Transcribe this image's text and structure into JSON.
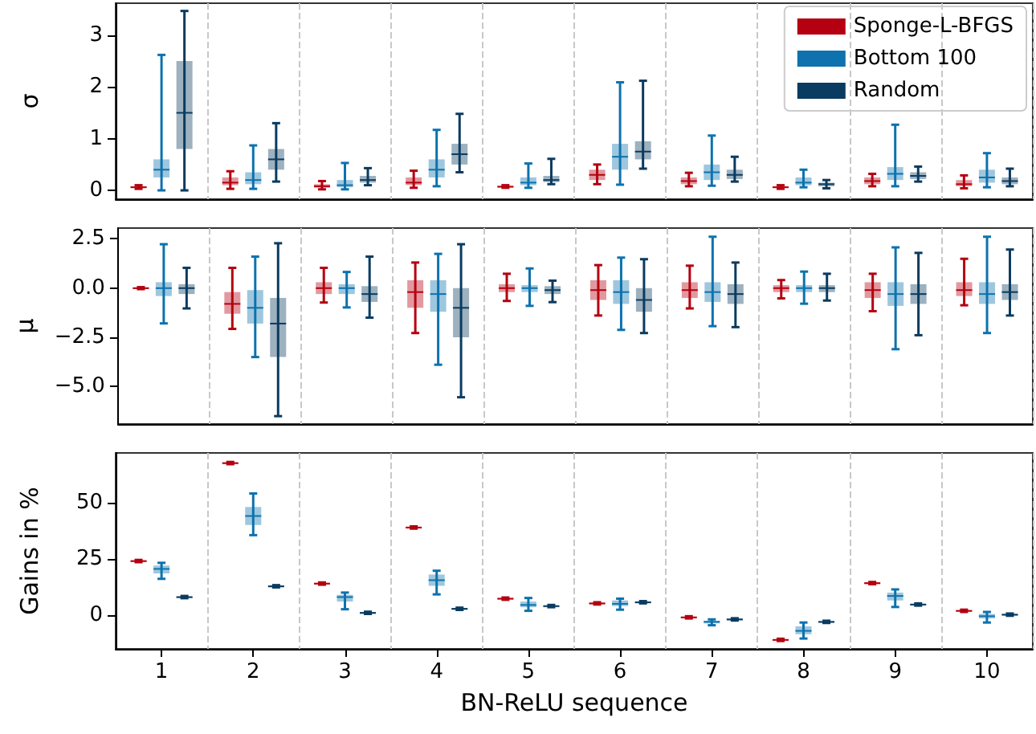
{
  "chart_data": [
    {
      "type": "box",
      "ylabel": "σ",
      "categories": [
        "1",
        "2",
        "3",
        "4",
        "5",
        "6",
        "7",
        "8",
        "9",
        "10"
      ],
      "ylim": [
        -0.17,
        3.62
      ],
      "yticks": [
        0,
        1,
        2,
        3
      ],
      "grid": "x",
      "legend": "top right",
      "tick_labels": "y",
      "series": [
        {
          "name": "Sponge-L-BFGS",
          "color": "#b40010",
          "boxes": [
            {
              "low": 0.03,
              "q1": 0.05,
              "median": 0.06,
              "q3": 0.08,
              "high": 0.1
            },
            {
              "low": 0.03,
              "q1": 0.1,
              "median": 0.15,
              "q3": 0.25,
              "high": 0.37
            },
            {
              "low": 0.02,
              "q1": 0.05,
              "median": 0.08,
              "q3": 0.12,
              "high": 0.18
            },
            {
              "low": 0.05,
              "q1": 0.1,
              "median": 0.15,
              "q3": 0.25,
              "high": 0.38
            },
            {
              "low": 0.05,
              "q1": 0.06,
              "median": 0.07,
              "q3": 0.09,
              "high": 0.1
            },
            {
              "low": 0.12,
              "q1": 0.2,
              "median": 0.3,
              "q3": 0.4,
              "high": 0.5
            },
            {
              "low": 0.08,
              "q1": 0.12,
              "median": 0.18,
              "q3": 0.25,
              "high": 0.34
            },
            {
              "low": 0.03,
              "q1": 0.05,
              "median": 0.06,
              "q3": 0.08,
              "high": 0.1
            },
            {
              "low": 0.08,
              "q1": 0.12,
              "median": 0.18,
              "q3": 0.25,
              "high": 0.32
            },
            {
              "low": 0.04,
              "q1": 0.08,
              "median": 0.12,
              "q3": 0.2,
              "high": 0.29
            }
          ]
        },
        {
          "name": "Bottom 100",
          "color": "#0d72ad",
          "boxes": [
            {
              "low": 0,
              "q1": 0.25,
              "median": 0.4,
              "q3": 0.6,
              "high": 2.62
            },
            {
              "low": 0.03,
              "q1": 0.12,
              "median": 0.2,
              "q3": 0.35,
              "high": 0.87
            },
            {
              "low": 0.02,
              "q1": 0.06,
              "median": 0.1,
              "q3": 0.2,
              "high": 0.53
            },
            {
              "low": 0.08,
              "q1": 0.25,
              "median": 0.4,
              "q3": 0.6,
              "high": 1.17
            },
            {
              "low": 0.05,
              "q1": 0.1,
              "median": 0.15,
              "q3": 0.25,
              "high": 0.52
            },
            {
              "low": 0.11,
              "q1": 0.4,
              "median": 0.65,
              "q3": 0.9,
              "high": 2.09
            },
            {
              "low": 0.09,
              "q1": 0.2,
              "median": 0.35,
              "q3": 0.5,
              "high": 1.06
            },
            {
              "low": 0.06,
              "q1": 0.1,
              "median": 0.15,
              "q3": 0.25,
              "high": 0.4
            },
            {
              "low": 0.08,
              "q1": 0.2,
              "median": 0.32,
              "q3": 0.45,
              "high": 1.27
            },
            {
              "low": 0.06,
              "q1": 0.15,
              "median": 0.25,
              "q3": 0.4,
              "high": 0.72
            }
          ]
        },
        {
          "name": "Random",
          "color": "#0a3b60",
          "boxes": [
            {
              "low": 0,
              "q1": 0.8,
              "median": 1.5,
              "q3": 2.5,
              "high": 3.47
            },
            {
              "low": 0.17,
              "q1": 0.4,
              "median": 0.6,
              "q3": 0.8,
              "high": 1.3
            },
            {
              "low": 0.1,
              "q1": 0.15,
              "median": 0.2,
              "q3": 0.28,
              "high": 0.43
            },
            {
              "low": 0.35,
              "q1": 0.5,
              "median": 0.7,
              "q3": 0.9,
              "high": 1.48
            },
            {
              "low": 0.12,
              "q1": 0.16,
              "median": 0.2,
              "q3": 0.28,
              "high": 0.61
            },
            {
              "low": 0.42,
              "q1": 0.6,
              "median": 0.75,
              "q3": 0.95,
              "high": 2.12
            },
            {
              "low": 0.17,
              "q1": 0.22,
              "median": 0.3,
              "q3": 0.4,
              "high": 0.65
            },
            {
              "low": 0.04,
              "q1": 0.08,
              "median": 0.12,
              "q3": 0.15,
              "high": 0.2
            },
            {
              "low": 0.17,
              "q1": 0.22,
              "median": 0.28,
              "q3": 0.35,
              "high": 0.46
            },
            {
              "low": 0.08,
              "q1": 0.12,
              "median": 0.18,
              "q3": 0.25,
              "high": 0.42
            }
          ]
        }
      ]
    },
    {
      "type": "box",
      "ylabel": "μ",
      "categories": [
        "1",
        "2",
        "3",
        "4",
        "5",
        "6",
        "7",
        "8",
        "9",
        "10"
      ],
      "ylim": [
        -6.9,
        3.05
      ],
      "yticks": [
        {
          "value": 2.5,
          "label": "2.5"
        },
        {
          "value": 0,
          "label": "0.0"
        },
        {
          "value": -2.5,
          "label": "−2.5"
        },
        {
          "value": -5,
          "label": "−5.0"
        }
      ],
      "grid": "x",
      "tick_labels": "y",
      "series": [
        {
          "color": "#b40010",
          "boxes": [
            {
              "low": -0.05,
              "q1": -0.03,
              "median": 0,
              "q3": 0.03,
              "high": 0.05
            },
            {
              "low": -2.07,
              "q1": -1.3,
              "median": -0.8,
              "q3": -0.2,
              "high": 1.03
            },
            {
              "low": -0.73,
              "q1": -0.3,
              "median": 0,
              "q3": 0.3,
              "high": 1.03
            },
            {
              "low": -2.28,
              "q1": -1,
              "median": -0.2,
              "q3": 0.4,
              "high": 1.3
            },
            {
              "low": -0.65,
              "q1": -0.2,
              "median": 0,
              "q3": 0.2,
              "high": 0.73
            },
            {
              "low": -1.39,
              "q1": -0.6,
              "median": -0.1,
              "q3": 0.4,
              "high": 1.17
            },
            {
              "low": -1.03,
              "q1": -0.5,
              "median": -0.1,
              "q3": 0.3,
              "high": 1.14
            },
            {
              "low": -0.52,
              "q1": -0.2,
              "median": 0,
              "q3": 0.15,
              "high": 0.41
            },
            {
              "low": -1.17,
              "q1": -0.5,
              "median": -0.1,
              "q3": 0.3,
              "high": 0.73
            },
            {
              "low": -0.87,
              "q1": -0.4,
              "median": -0.1,
              "q3": 0.3,
              "high": 1.49
            }
          ]
        },
        {
          "color": "#0d72ad",
          "boxes": [
            {
              "low": -1.79,
              "q1": -0.4,
              "median": 0,
              "q3": 0.3,
              "high": 2.23
            },
            {
              "low": -3.5,
              "q1": -1.8,
              "median": -1,
              "q3": -0.1,
              "high": 1.6
            },
            {
              "low": -0.98,
              "q1": -0.3,
              "median": 0,
              "q3": 0.2,
              "high": 0.82
            },
            {
              "low": -3.89,
              "q1": -1.2,
              "median": -0.3,
              "q3": 0.4,
              "high": 1.74
            },
            {
              "low": -0.9,
              "q1": -0.2,
              "median": 0,
              "q3": 0.15,
              "high": 1
            },
            {
              "low": -2.12,
              "q1": -0.8,
              "median": -0.2,
              "q3": 0.4,
              "high": 1.55
            },
            {
              "low": -1.93,
              "q1": -0.7,
              "median": -0.2,
              "q3": 0.3,
              "high": 2.61
            },
            {
              "low": -0.79,
              "q1": -0.2,
              "median": 0,
              "q3": 0.15,
              "high": 0.84
            },
            {
              "low": -3.1,
              "q1": -0.9,
              "median": -0.3,
              "q3": 0.3,
              "high": 2.07
            },
            {
              "low": -2.28,
              "q1": -0.8,
              "median": -0.3,
              "q3": 0.3,
              "high": 2.61
            }
          ]
        },
        {
          "color": "#0a3b60",
          "boxes": [
            {
              "low": -1.03,
              "q1": -0.3,
              "median": 0,
              "q3": 0.2,
              "high": 1.03
            },
            {
              "low": -6.5,
              "q1": -3.5,
              "median": -1.8,
              "q3": -0.5,
              "high": 2.28
            },
            {
              "low": -1.5,
              "q1": -0.7,
              "median": -0.3,
              "q3": 0.1,
              "high": 1.6
            },
            {
              "low": -5.54,
              "q1": -2.5,
              "median": -1,
              "q3": 0,
              "high": 2.23
            },
            {
              "low": -0.71,
              "q1": -0.3,
              "median": -0.1,
              "q3": 0.1,
              "high": 0.38
            },
            {
              "low": -2.28,
              "q1": -1.2,
              "median": -0.6,
              "q3": 0,
              "high": 1.47
            },
            {
              "low": -1.98,
              "q1": -0.8,
              "median": -0.3,
              "q3": 0.2,
              "high": 1.3
            },
            {
              "low": -0.63,
              "q1": -0.2,
              "median": 0,
              "q3": 0.15,
              "high": 0.73
            },
            {
              "low": -2.39,
              "q1": -0.8,
              "median": -0.3,
              "q3": 0.2,
              "high": 1.79
            },
            {
              "low": -1.39,
              "q1": -0.6,
              "median": -0.2,
              "q3": 0.2,
              "high": 1.96
            }
          ]
        }
      ]
    },
    {
      "type": "box",
      "ylabel": "Gains in %",
      "xlabel": "BN-ReLU sequence",
      "categories": [
        "1",
        "2",
        "3",
        "4",
        "5",
        "6",
        "7",
        "8",
        "9",
        "10"
      ],
      "ylim": [
        -15,
        72
      ],
      "yticks": [
        0,
        25,
        50
      ],
      "grid": "x",
      "series": [
        {
          "color": "#b40010",
          "boxes": [
            {
              "low": 23.5,
              "q1": 23.8,
              "median": 24,
              "q3": 24.2,
              "high": 24.5
            },
            {
              "low": 67,
              "q1": 67.3,
              "median": 67.5,
              "q3": 67.7,
              "high": 68
            },
            {
              "low": 13.5,
              "q1": 13.8,
              "median": 14,
              "q3": 14.2,
              "high": 14.5
            },
            {
              "low": 38.4,
              "q1": 38.7,
              "median": 38.9,
              "q3": 39.1,
              "high": 39.4
            },
            {
              "low": 6.8,
              "q1": 7.1,
              "median": 7.3,
              "q3": 7.5,
              "high": 7.8
            },
            {
              "low": 4.7,
              "q1": 5,
              "median": 5.2,
              "q3": 5.4,
              "high": 5.7
            },
            {
              "low": -1.5,
              "q1": -1.2,
              "median": -1,
              "q3": -0.8,
              "high": -0.5
            },
            {
              "low": -11.5,
              "q1": -11.2,
              "median": -11,
              "q3": -10.8,
              "high": -10.5
            },
            {
              "low": 13.7,
              "q1": 14,
              "median": 14.2,
              "q3": 14.4,
              "high": 14.7
            },
            {
              "low": 1.4,
              "q1": 1.7,
              "median": 1.9,
              "q3": 2.1,
              "high": 2.4
            }
          ]
        },
        {
          "color": "#0d72ad",
          "boxes": [
            {
              "low": 16.1,
              "q1": 18.5,
              "median": 20.5,
              "q3": 22,
              "high": 23.2
            },
            {
              "low": 35.5,
              "q1": 40,
              "median": 44,
              "q3": 48,
              "high": 54
            },
            {
              "low": 2.6,
              "q1": 6,
              "median": 8,
              "q3": 9,
              "high": 10
            },
            {
              "low": 9.2,
              "q1": 13,
              "median": 15.5,
              "q3": 18,
              "high": 19.7
            },
            {
              "low": 1.9,
              "q1": 3.5,
              "median": 4.5,
              "q3": 6,
              "high": 7.6
            },
            {
              "low": 2.4,
              "q1": 4,
              "median": 5,
              "q3": 6.5,
              "high": 7.3
            },
            {
              "low": -4.5,
              "q1": -3.7,
              "median": -3,
              "q3": -2.5,
              "high": -1.9
            },
            {
              "low": -10.4,
              "q1": -8.5,
              "median": -7,
              "q3": -5,
              "high": -3.3
            },
            {
              "low": 3.6,
              "q1": 6.5,
              "median": 8.5,
              "q3": 10,
              "high": 11.4
            },
            {
              "low": -3.3,
              "q1": -1.5,
              "median": -0.5,
              "q3": 0.5,
              "high": 1.4
            }
          ]
        },
        {
          "color": "#0a3b60",
          "boxes": [
            {
              "low": 7.5,
              "q1": 7.8,
              "median": 8,
              "q3": 8.2,
              "high": 8.5
            },
            {
              "low": 12.3,
              "q1": 12.6,
              "median": 12.8,
              "q3": 13,
              "high": 13.3
            },
            {
              "low": 0.5,
              "q1": 0.8,
              "median": 1,
              "q3": 1.2,
              "high": 1.5
            },
            {
              "low": 2.3,
              "q1": 2.6,
              "median": 2.8,
              "q3": 3,
              "high": 3.3
            },
            {
              "low": 3.5,
              "q1": 3.8,
              "median": 4,
              "q3": 4.2,
              "high": 4.5
            },
            {
              "low": 5.2,
              "q1": 5.5,
              "median": 5.7,
              "q3": 5.9,
              "high": 6.2
            },
            {
              "low": -2.4,
              "q1": -2.1,
              "median": -1.9,
              "q3": -1.7,
              "high": -1.4
            },
            {
              "low": -3.5,
              "q1": -3.2,
              "median": -3,
              "q3": -2.8,
              "high": -2.5
            },
            {
              "low": 4.2,
              "q1": 4.5,
              "median": 4.7,
              "q3": 4.9,
              "high": 5.2
            },
            {
              "low": -0.3,
              "q1": 0,
              "median": 0.2,
              "q3": 0.4,
              "high": 0.7
            }
          ]
        }
      ]
    }
  ]
}
